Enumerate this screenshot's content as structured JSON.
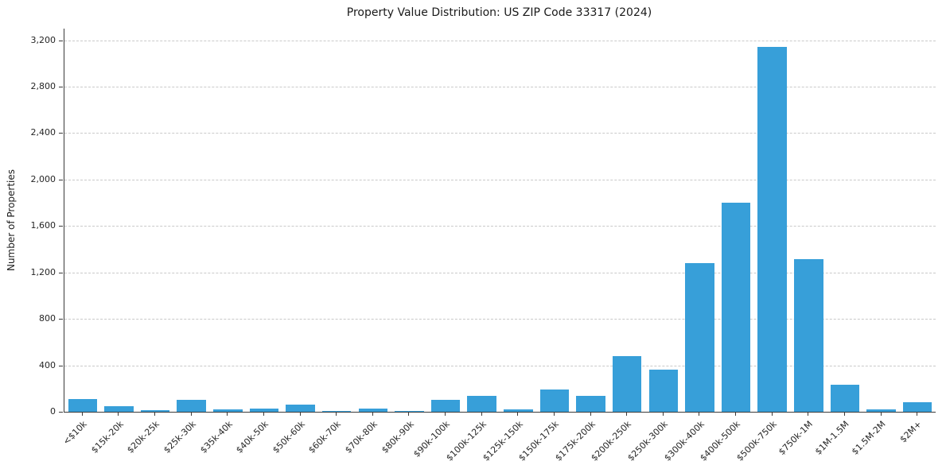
{
  "chart": {
    "title": "Property Value Distribution: US ZIP Code 33317 (2024)",
    "ylabel": "Number of Properties"
  },
  "chart_data": {
    "type": "bar",
    "title": "Property Value Distribution: US ZIP Code 33317 (2024)",
    "xlabel": "",
    "ylabel": "Number of Properties",
    "categories": [
      "<$10k",
      "$15k-20k",
      "$20k-25k",
      "$25k-30k",
      "$35k-40k",
      "$40k-50k",
      "$50k-60k",
      "$60k-70k",
      "$70k-80k",
      "$80k-90k",
      "$90k-100k",
      "$100k-125k",
      "$125k-150k",
      "$150k-175k",
      "$175k-200k",
      "$200k-250k",
      "$250k-300k",
      "$300k-400k",
      "$400k-500k",
      "$500k-750k",
      "$750k-1M",
      "$1M-1.5M",
      "$1.5M-2M",
      "$2M+"
    ],
    "values": [
      110,
      50,
      15,
      100,
      20,
      30,
      60,
      5,
      25,
      5,
      100,
      135,
      20,
      195,
      140,
      480,
      365,
      1280,
      1800,
      3140,
      1315,
      230,
      20,
      80
    ],
    "ylim": [
      0,
      3300
    ],
    "yticks": [
      0,
      400,
      800,
      1200,
      1600,
      2000,
      2400,
      2800,
      3200
    ],
    "bar_color": "#379fd9",
    "grid": "dashed-horizontal",
    "legend": "none"
  }
}
